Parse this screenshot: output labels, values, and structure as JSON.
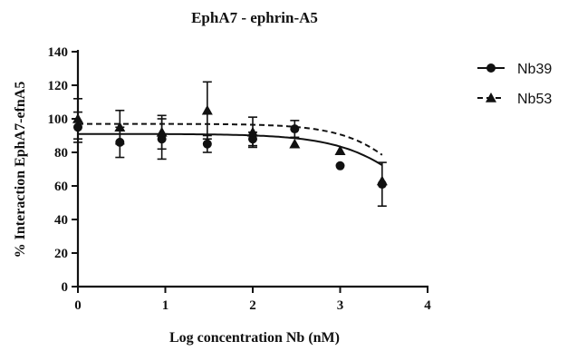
{
  "chart_data": {
    "type": "line",
    "title": "EphA7 - ephrin-A5",
    "xlabel": "Log concentration Nb (nM)",
    "ylabel": "% Interaction EphA7-efnA5",
    "xlim": [
      0,
      4
    ],
    "ylim": [
      0,
      140
    ],
    "xticks": [
      "0",
      "1",
      "2",
      "3",
      "4"
    ],
    "yticks": [
      "0",
      "20",
      "40",
      "60",
      "80",
      "100",
      "120",
      "140"
    ],
    "grid": false,
    "legend_position": "top-right",
    "series": [
      {
        "name": "Nb39",
        "marker": "circle",
        "line": "solid",
        "color": "#111111",
        "points": [
          {
            "x": 0.0,
            "y": 95,
            "err": 9
          },
          {
            "x": 0.48,
            "y": 86,
            "err": 9
          },
          {
            "x": 0.96,
            "y": 88,
            "err": 12
          },
          {
            "x": 1.48,
            "y": 85,
            "err": 5
          },
          {
            "x": 2.0,
            "y": 88,
            "err": 4
          },
          {
            "x": 2.48,
            "y": 94,
            "err": 5
          },
          {
            "x": 3.0,
            "y": 72,
            "err": 0
          },
          {
            "x": 3.48,
            "y": 61,
            "err": 13
          }
        ],
        "fit": {
          "top": 91,
          "bottom": 0,
          "logIC50": 4.1,
          "hill": 0.95
        }
      },
      {
        "name": "Nb53",
        "marker": "triangle",
        "line": "dashed",
        "color": "#111111",
        "points": [
          {
            "x": 0.0,
            "y": 100,
            "err": 12
          },
          {
            "x": 0.48,
            "y": 95,
            "err": 10
          },
          {
            "x": 0.96,
            "y": 92,
            "err": 10
          },
          {
            "x": 1.48,
            "y": 105,
            "err": 17
          },
          {
            "x": 2.0,
            "y": 92,
            "err": 9
          },
          {
            "x": 2.48,
            "y": 85,
            "err": 0
          },
          {
            "x": 3.0,
            "y": 81,
            "err": 0
          },
          {
            "x": 3.48,
            "y": 63,
            "err": 0
          }
        ],
        "fit": {
          "top": 97,
          "bottom": 0,
          "logIC50": 4.05,
          "hill": 1.1
        }
      }
    ]
  }
}
